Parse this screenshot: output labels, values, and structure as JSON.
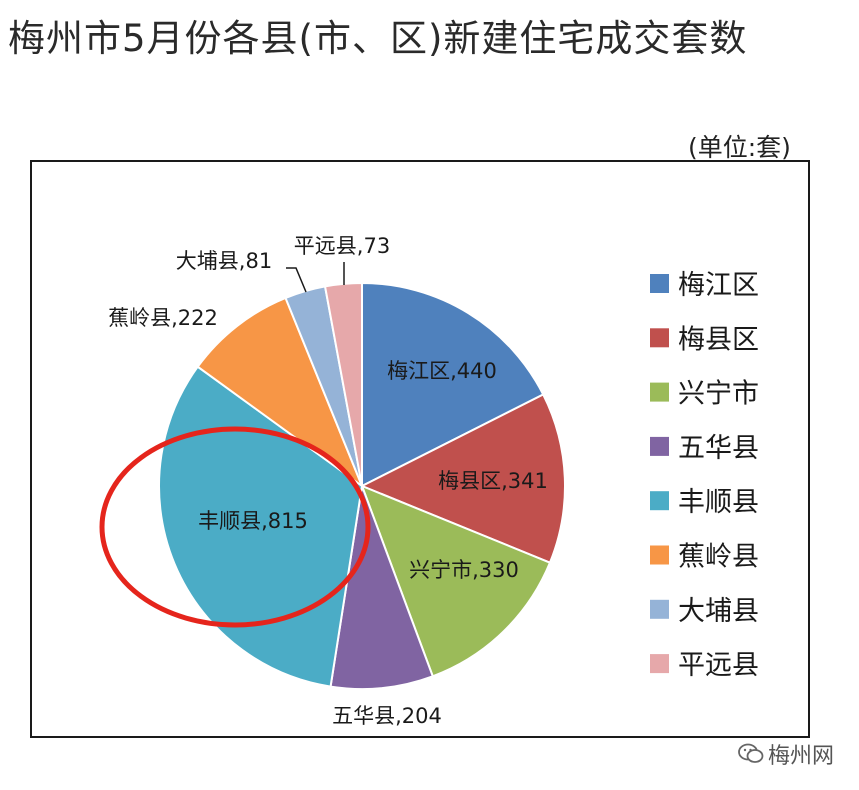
{
  "title": "梅州市5月份各县(市、区)新建住宅成交套数",
  "unit_label": "(单位:套)",
  "watermark": "梅州网",
  "chart_data": {
    "type": "pie",
    "title": "梅州市5月份各县(市、区)新建住宅成交套数",
    "unit": "(单位:套)",
    "categories": [
      "梅江区",
      "梅县区",
      "兴宁市",
      "五华县",
      "丰顺县",
      "蕉岭县",
      "大埔县",
      "平远县"
    ],
    "values": [
      440,
      341,
      330,
      204,
      815,
      222,
      81,
      73
    ],
    "colors": [
      "#4f81bd",
      "#c0504d",
      "#9bbb59",
      "#8064a2",
      "#4bacc6",
      "#f79646",
      "#95b3d7",
      "#e6a8aa"
    ],
    "data_labels": [
      "梅江区,440",
      "梅县区,341",
      "兴宁市,330",
      "五华县,204",
      "丰顺县,815",
      "蕉岭县,222",
      "大埔县,81",
      "平远县,73"
    ],
    "legend_position": "right",
    "start_angle": "12 o'clock",
    "direction": "clockwise",
    "highlight": {
      "category": "丰顺县",
      "style": "red ellipse"
    }
  }
}
